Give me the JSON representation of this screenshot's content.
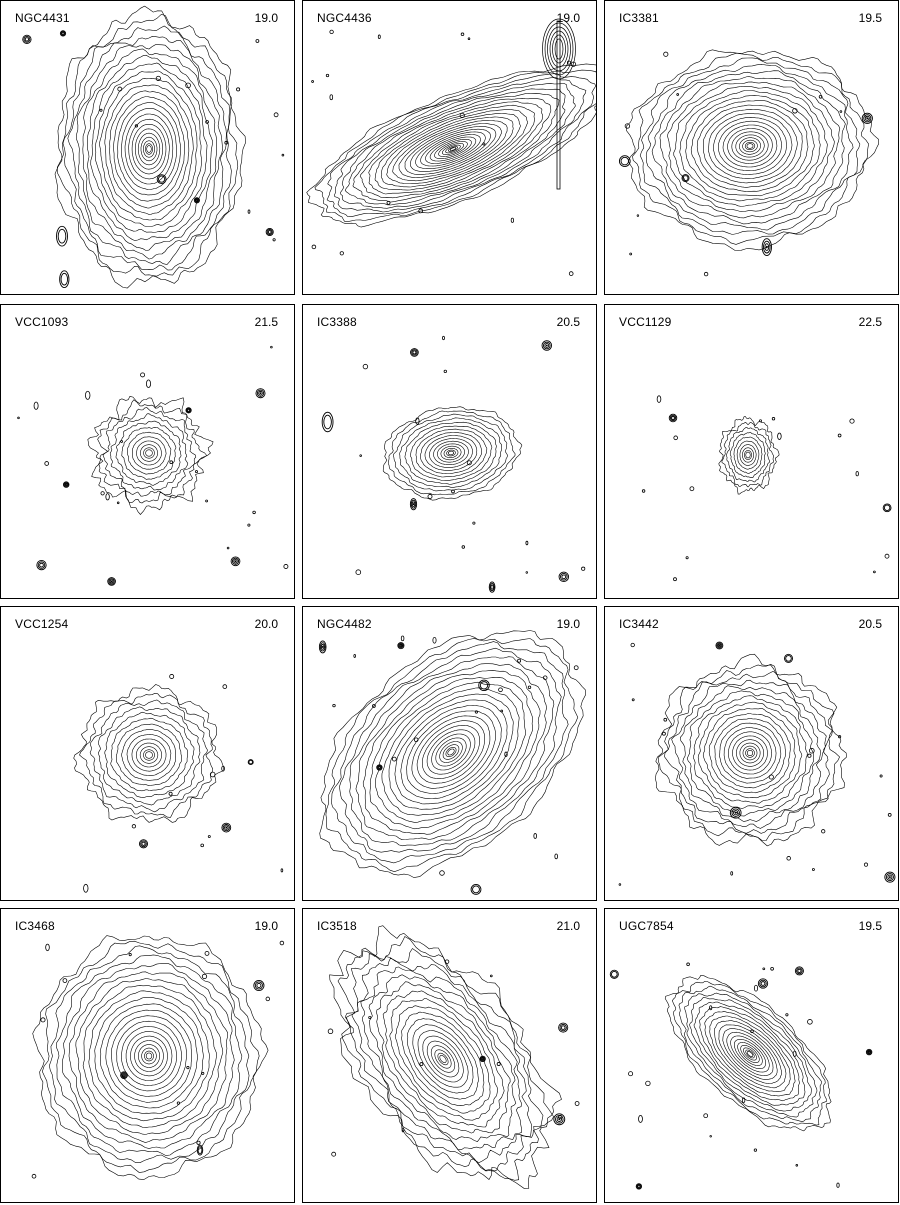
{
  "panels": [
    {
      "name": "NGC4431",
      "level": "19.0",
      "n": 24,
      "outer": [
        92,
        135
      ],
      "rot": 0,
      "inner": 0.025,
      "rough": 0.07,
      "ext": "none"
    },
    {
      "name": "NGC4436",
      "level": "19.0",
      "n": 26,
      "outer": [
        150,
        52
      ],
      "rot": -22,
      "inner": 0.02,
      "rough": 0.05,
      "ext": "tr"
    },
    {
      "name": "IC3381",
      "level": "19.5",
      "n": 24,
      "outer": [
        122,
        95
      ],
      "rot": -5,
      "inner": 0.025,
      "rough": 0.06,
      "ext": "bottom"
    },
    {
      "name": "VCC1093",
      "level": "21.5",
      "n": 12,
      "outer": [
        56,
        54
      ],
      "rot": 0,
      "inner": 0.06,
      "rough": 0.16,
      "ext": "none"
    },
    {
      "name": "IC3388",
      "level": "20.5",
      "n": 16,
      "outer": [
        68,
        45
      ],
      "rot": -8,
      "inner": 0.04,
      "rough": 0.05,
      "ext": "none"
    },
    {
      "name": "VCC1129",
      "level": "22.5",
      "n": 10,
      "outer": [
        28,
        36
      ],
      "rot": 0,
      "inner": 0.08,
      "rough": 0.12,
      "ext": "none"
    },
    {
      "name": "VCC1254",
      "level": "20.0",
      "n": 14,
      "outer": [
        70,
        66
      ],
      "rot": 0,
      "inner": 0.05,
      "rough": 0.1,
      "ext": "none"
    },
    {
      "name": "NGC4482",
      "level": "19.0",
      "n": 24,
      "outer": [
        150,
        95
      ],
      "rot": -40,
      "inner": 0.025,
      "rough": 0.05,
      "ext": "none"
    },
    {
      "name": "IC3442",
      "level": "20.5",
      "n": 20,
      "outer": [
        92,
        90
      ],
      "rot": 0,
      "inner": 0.03,
      "rough": 0.1,
      "ext": "none"
    },
    {
      "name": "IC3468",
      "level": "19.0",
      "n": 22,
      "outer": [
        112,
        120
      ],
      "rot": 0,
      "inner": 0.025,
      "rough": 0.06,
      "ext": "none"
    },
    {
      "name": "IC3518",
      "level": "21.0",
      "n": 20,
      "outer": [
        140,
        80
      ],
      "rot": 52,
      "inner": 0.03,
      "rough": 0.12,
      "ext": "none"
    },
    {
      "name": "UGC7854",
      "level": "19.5",
      "n": 20,
      "outer": [
        100,
        48
      ],
      "rot": 42,
      "inner": 0.035,
      "rough": 0.06,
      "ext": "none"
    }
  ]
}
